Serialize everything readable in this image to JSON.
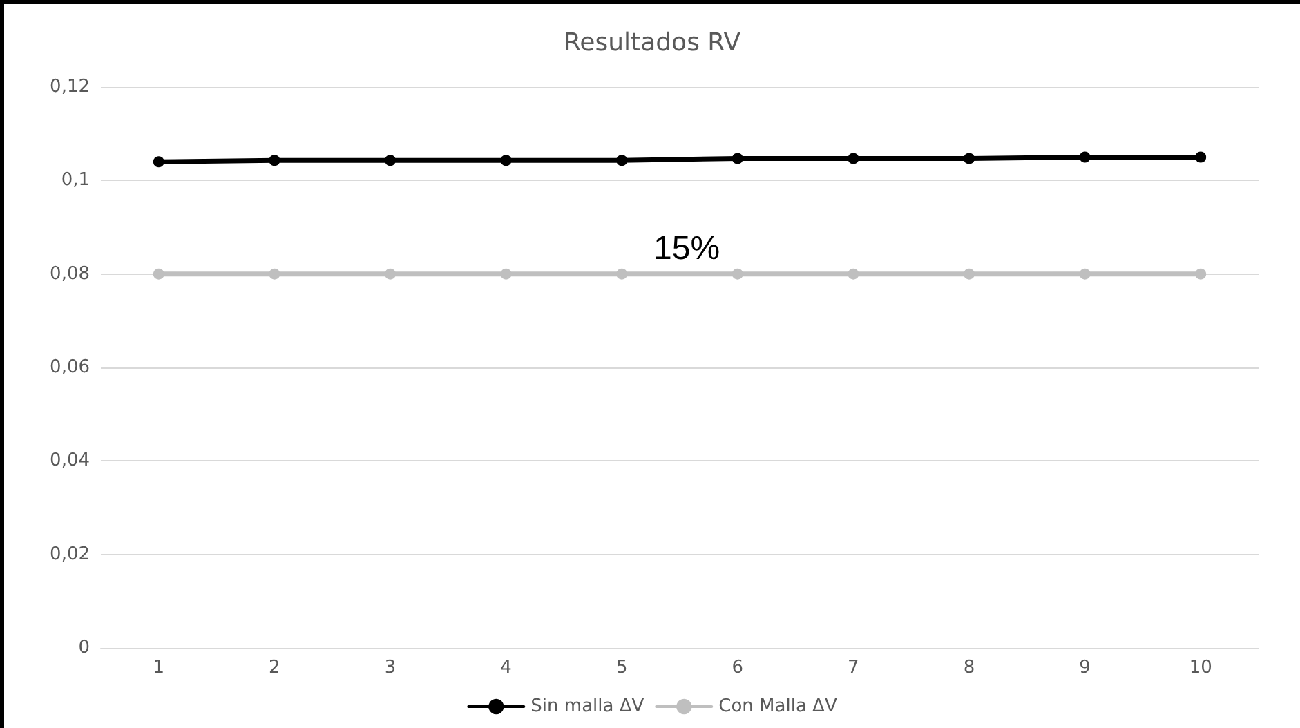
{
  "chart_data": {
    "type": "line",
    "title": "Resultados RV",
    "categories": [
      "1",
      "2",
      "3",
      "4",
      "5",
      "6",
      "7",
      "8",
      "9",
      "10"
    ],
    "series": [
      {
        "name": "Sin malla ΔV",
        "color": "#000000",
        "values": [
          0.104,
          0.1043,
          0.1043,
          0.1043,
          0.1043,
          0.1047,
          0.1047,
          0.1047,
          0.105,
          0.105
        ]
      },
      {
        "name": "Con Malla ΔV",
        "color": "#bfbfbf",
        "values": [
          0.08,
          0.08,
          0.08,
          0.08,
          0.08,
          0.08,
          0.08,
          0.08,
          0.08,
          0.08
        ]
      }
    ],
    "ylim": [
      0,
      0.12
    ],
    "yticks": [
      0,
      {
        "value": 0.02,
        "label": "0,02"
      },
      {
        "value": 0.04,
        "label": "0,04"
      },
      {
        "value": 0.06,
        "label": "0,06"
      },
      {
        "value": 0.08,
        "label": "0,08"
      },
      {
        "value": 0.1,
        "label": "0,1"
      },
      {
        "value": 0.12,
        "label": "0,12"
      }
    ],
    "annotations": [
      "15%"
    ],
    "grid": "y",
    "legend": "bottom",
    "marker": "circle",
    "line_style": "solid"
  }
}
